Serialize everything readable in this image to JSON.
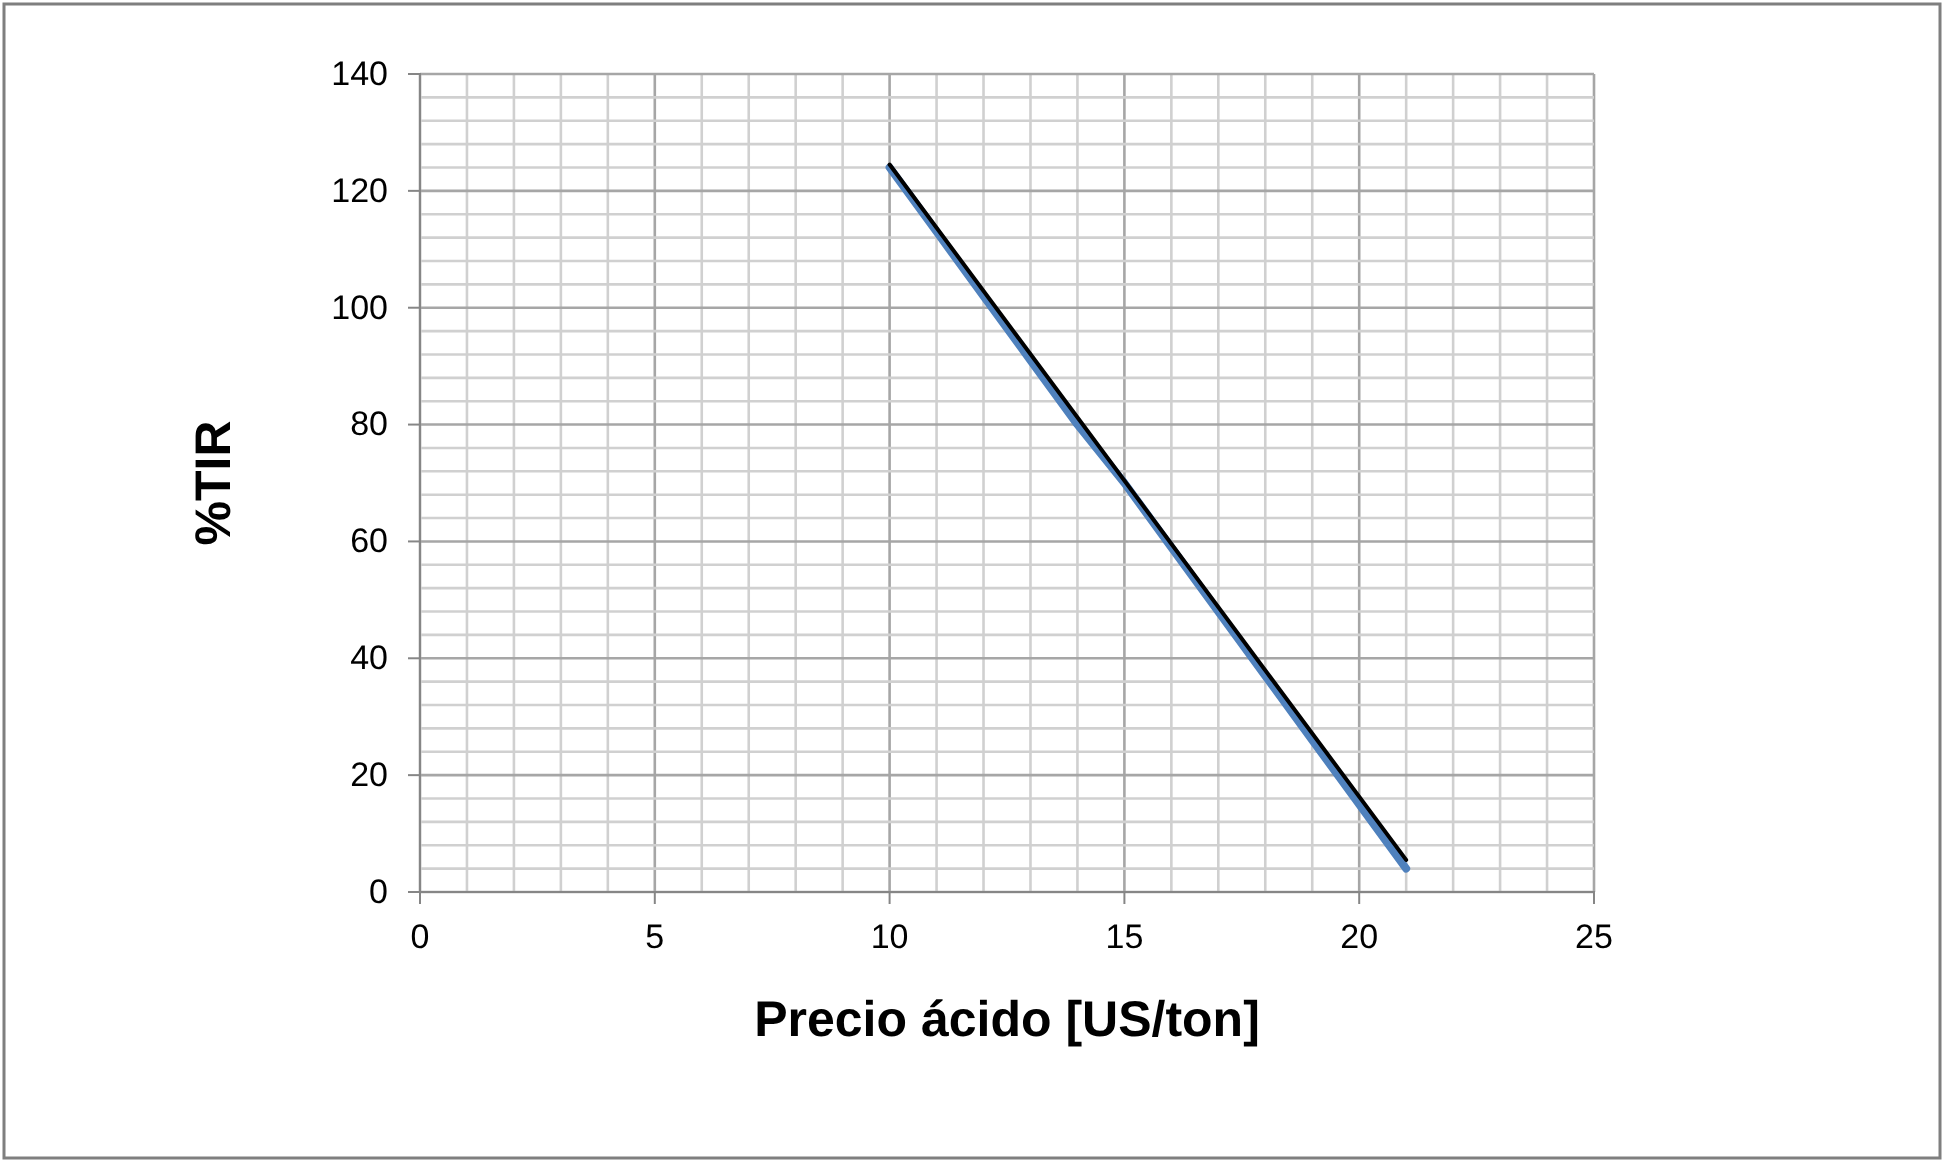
{
  "chart_data": {
    "type": "line",
    "xlabel": "Precio ácido [US/ton]",
    "ylabel": "%TIR",
    "xlim": [
      0,
      25
    ],
    "ylim": [
      0,
      140
    ],
    "xticks": [
      0,
      {
        "value": 1,
        "label": null
      },
      {
        "value": 2,
        "label": null
      },
      {
        "value": 3,
        "label": null
      },
      {
        "value": 4,
        "label": null
      },
      5,
      {
        "value": 6,
        "label": null
      },
      {
        "value": 7,
        "label": null
      },
      {
        "value": 8,
        "label": null
      },
      {
        "value": 9,
        "label": null
      },
      10,
      {
        "value": 11,
        "label": null
      },
      {
        "value": 12,
        "label": null
      },
      {
        "value": 13,
        "label": null
      },
      {
        "value": 14,
        "label": null
      },
      15,
      {
        "value": 16,
        "label": null
      },
      {
        "value": 17,
        "label": null
      },
      {
        "value": 18,
        "label": null
      },
      {
        "value": 19,
        "label": null
      },
      20,
      {
        "value": 21,
        "label": null
      },
      {
        "value": 22,
        "label": null
      },
      {
        "value": 23,
        "label": null
      },
      {
        "value": 24,
        "label": null
      },
      25
    ],
    "yticks": [
      0,
      {
        "value": 4,
        "label": null
      },
      {
        "value": 8,
        "label": null
      },
      {
        "value": 12,
        "label": null
      },
      {
        "value": 16,
        "label": null
      },
      20,
      {
        "value": 24,
        "label": null
      },
      {
        "value": 28,
        "label": null
      },
      {
        "value": 32,
        "label": null
      },
      {
        "value": 36,
        "label": null
      },
      40,
      {
        "value": 44,
        "label": null
      },
      {
        "value": 48,
        "label": null
      },
      {
        "value": 52,
        "label": null
      },
      {
        "value": 56,
        "label": null
      },
      60,
      {
        "value": 64,
        "label": null
      },
      {
        "value": 68,
        "label": null
      },
      {
        "value": 72,
        "label": null
      },
      {
        "value": 76,
        "label": null
      },
      80,
      {
        "value": 84,
        "label": null
      },
      {
        "value": 88,
        "label": null
      },
      {
        "value": 92,
        "label": null
      },
      {
        "value": 96,
        "label": null
      },
      100,
      {
        "value": 104,
        "label": null
      },
      {
        "value": 108,
        "label": null
      },
      {
        "value": 112,
        "label": null
      },
      {
        "value": 116,
        "label": null
      },
      120,
      {
        "value": 124,
        "label": null
      },
      {
        "value": 128,
        "label": null
      },
      {
        "value": 132,
        "label": null
      },
      {
        "value": 136,
        "label": null
      },
      140
    ],
    "grid": true,
    "marker": "none",
    "line_style": "solid",
    "series": [
      {
        "color": "#4f81bd",
        "x": [
          10,
          11,
          12,
          13,
          14,
          15,
          16,
          17,
          18,
          19,
          20,
          21
        ],
        "values": [
          124,
          113,
          102,
          91,
          80,
          70,
          59,
          48,
          37,
          26,
          15,
          4
        ]
      },
      {
        "color": "#000000",
        "x": [
          10,
          21
        ],
        "values": [
          124.5,
          5.5
        ]
      }
    ]
  }
}
